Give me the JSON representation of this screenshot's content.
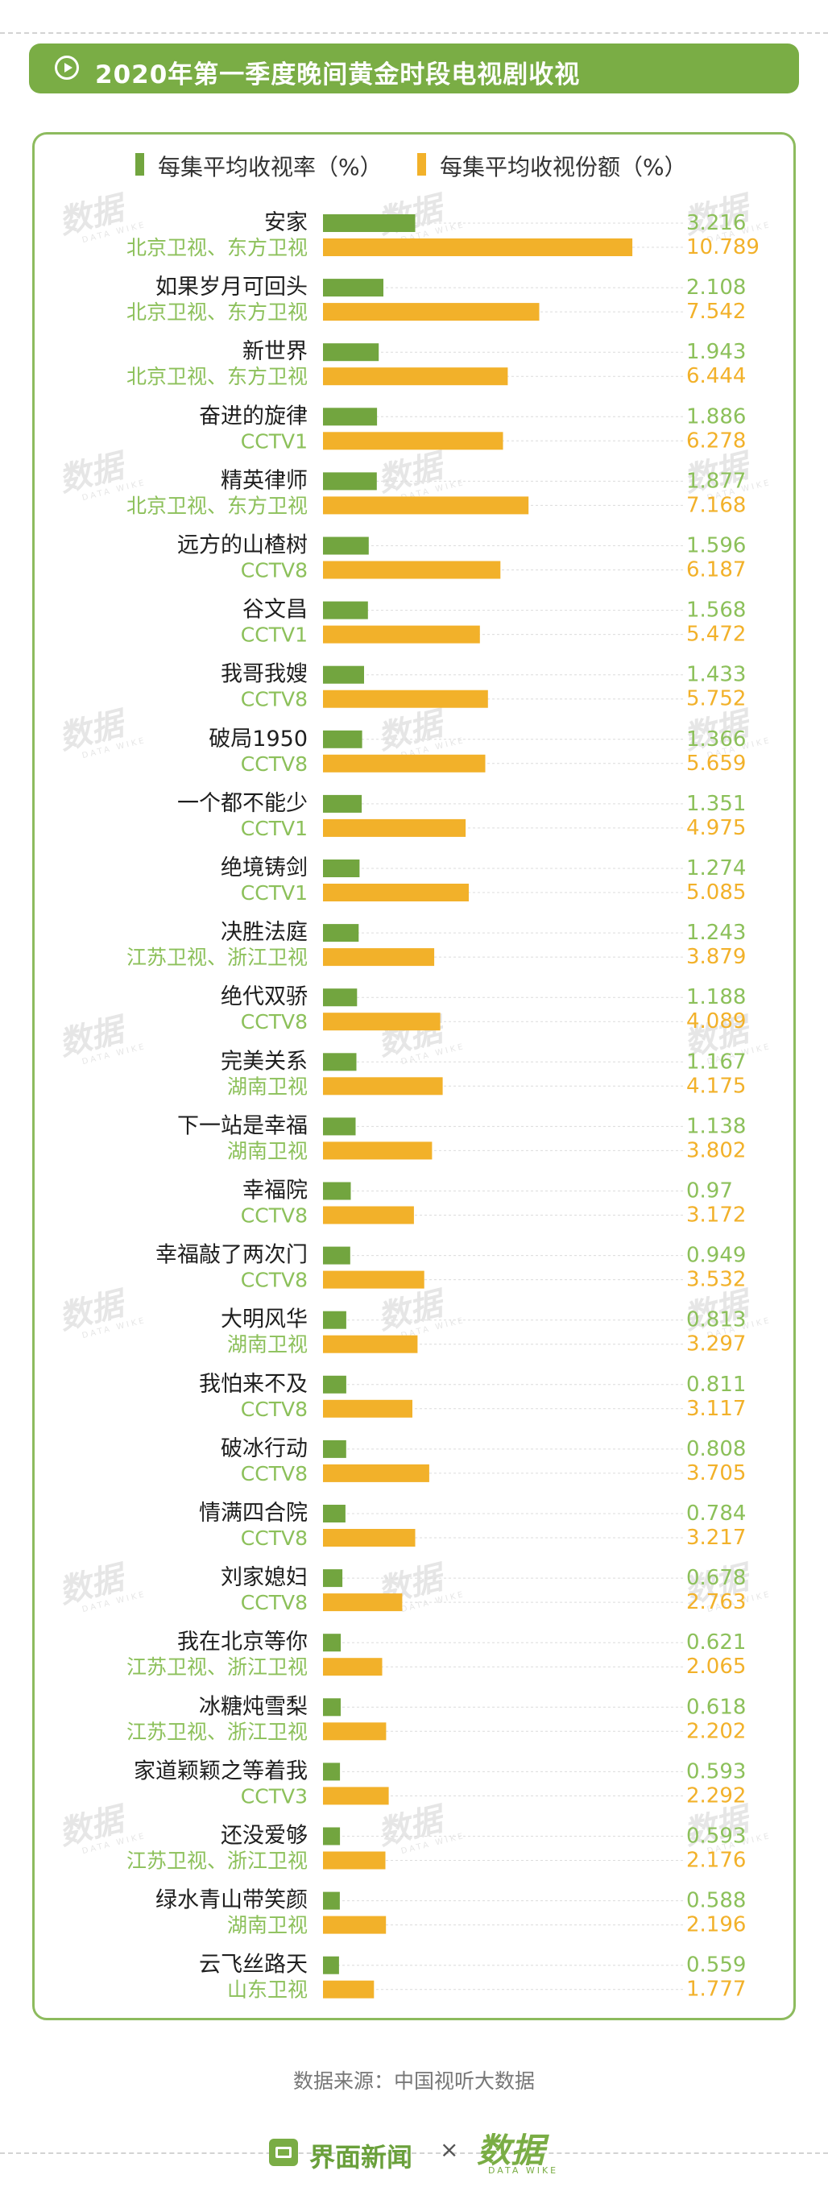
{
  "title": "2020年第一季度晚间黄金时段电视剧收视",
  "legend": {
    "rating_label": "每集平均收视率（%）",
    "share_label": "每集平均收视份额（%）"
  },
  "source": "数据来源：中国视听大数据",
  "footer": {
    "brand1": "界面新闻",
    "separator": "×",
    "brand2": "数据",
    "brand2_sub": "DATA WIKE"
  },
  "watermark": {
    "main": "数据",
    "sub": "DATA WIKE"
  },
  "colors": {
    "rating": "#72a53f",
    "share": "#f2b12a",
    "channel_text": "#8cc05a",
    "accent": "#7aad45"
  },
  "chart_data": {
    "type": "bar",
    "orientation": "horizontal",
    "grid": false,
    "categories": [
      "安家",
      "如果岁月可回头",
      "新世界",
      "奋进的旋律",
      "精英律师",
      "远方的山楂树",
      "谷文昌",
      "我哥我嫂",
      "破局1950",
      "一个都不能少",
      "绝境铸剑",
      "决胜法庭",
      "绝代双骄",
      "完美关系",
      "下一站是幸福",
      "幸福院",
      "幸福敲了两次门",
      "大明风华",
      "我怕来不及",
      "破冰行动",
      "情满四合院",
      "刘家媳妇",
      "我在北京等你",
      "冰糖炖雪梨",
      "家道颖颖之等着我",
      "还没爱够",
      "绿水青山带笑颜",
      "云飞丝路天"
    ],
    "channels": [
      "北京卫视、东方卫视",
      "北京卫视、东方卫视",
      "北京卫视、东方卫视",
      "CCTV1",
      "北京卫视、东方卫视",
      "CCTV8",
      "CCTV1",
      "CCTV8",
      "CCTV8",
      "CCTV1",
      "CCTV1",
      "江苏卫视、浙江卫视",
      "CCTV8",
      "湖南卫视",
      "湖南卫视",
      "CCTV8",
      "CCTV8",
      "湖南卫视",
      "CCTV8",
      "CCTV8",
      "CCTV8",
      "CCTV8",
      "江苏卫视、浙江卫视",
      "江苏卫视、浙江卫视",
      "CCTV3",
      "江苏卫视、浙江卫视",
      "湖南卫视",
      "山东卫视"
    ],
    "series": [
      {
        "name": "每集平均收视率（%）",
        "values": [
          3.216,
          2.108,
          1.943,
          1.886,
          1.877,
          1.596,
          1.568,
          1.433,
          1.366,
          1.351,
          1.274,
          1.243,
          1.188,
          1.167,
          1.138,
          0.97,
          0.949,
          0.813,
          0.811,
          0.808,
          0.784,
          0.678,
          0.621,
          0.618,
          0.593,
          0.593,
          0.588,
          0.559
        ]
      },
      {
        "name": "每集平均收视份额（%）",
        "values": [
          10.789,
          7.542,
          6.444,
          6.278,
          7.168,
          6.187,
          5.472,
          5.752,
          5.659,
          4.975,
          5.085,
          3.879,
          4.089,
          4.175,
          3.802,
          3.172,
          3.532,
          3.297,
          3.117,
          3.705,
          3.217,
          2.763,
          2.065,
          2.202,
          2.292,
          2.176,
          2.196,
          1.777
        ]
      }
    ],
    "value_labels": {
      "rating": [
        "3.216",
        "2.108",
        "1.943",
        "1.886",
        "1.877",
        "1.596",
        "1.568",
        "1.433",
        "1.366",
        "1.351",
        "1.274",
        "1.243",
        "1.188",
        "1.167",
        "1.138",
        "0.97",
        "0.949",
        "0.813",
        "0.811",
        "0.808",
        "0.784",
        "0.678",
        "0.621",
        "0.618",
        "0.593",
        "0.593",
        "0.588",
        "0.559"
      ],
      "share": [
        "10.789",
        "7.542",
        "6.444",
        "6.278",
        "7.168",
        "6.187",
        "5.472",
        "5.752",
        "5.659",
        "4.975",
        "5.085",
        "3.879",
        "4.089",
        "4.175",
        "3.802",
        "3.172",
        "3.532",
        "3.297",
        "3.117",
        "3.705",
        "3.217",
        "2.763",
        "2.065",
        "2.202",
        "2.292",
        "2.176",
        "2.196",
        "1.777"
      ]
    }
  }
}
